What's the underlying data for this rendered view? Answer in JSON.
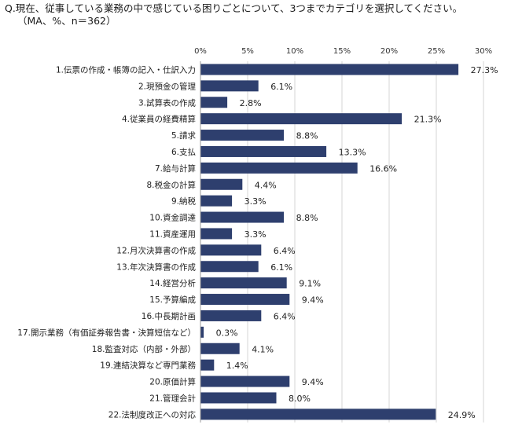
{
  "question": "Q.現在、従事している業務の中で感じている困りごとについて、3つまでカテゴリを選択してください。",
  "note": "（MA、%、n＝362）",
  "chart_data": {
    "type": "bar",
    "orientation": "horizontal",
    "title": "Q.現在、従事している業務の中で感じている困りごとについて、3つまでカテゴリを選択してください。",
    "subtitle": "（MA、%、n＝362）",
    "xlim": [
      0,
      30
    ],
    "xticks": [
      "0%",
      "5%",
      "10%",
      "15%",
      "20%",
      "25%",
      "30%"
    ],
    "xtick_values": [
      0,
      5,
      10,
      15,
      20,
      25,
      30
    ],
    "grid": true,
    "bar_color": "#2e3f6e",
    "categories": [
      "1.伝票の作成・帳簿の記入・仕訳入力",
      "2.現預金の管理",
      "3.試算表の作成",
      "4.従業員の経費精算",
      "5.請求",
      "6.支払",
      "7.給与計算",
      "8.税金の計算",
      "9.納税",
      "10.資金調達",
      "11.資産運用",
      "12.月次決算書の作成",
      "13.年次決算書の作成",
      "14.経営分析",
      "15.予算編成",
      "16.中長期計画",
      "17.開示業務（有価証券報告書・決算短信など）",
      "18.監査対応（内部・外部）",
      "19.連結決算など専門業務",
      "20.原価計算",
      "21.管理会計",
      "22.法制度改正への対応"
    ],
    "values": [
      27.3,
      6.1,
      2.8,
      21.3,
      8.8,
      13.3,
      16.6,
      4.4,
      3.3,
      8.8,
      3.3,
      6.4,
      6.1,
      9.1,
      9.4,
      6.4,
      0.3,
      4.1,
      1.4,
      9.4,
      8.0,
      24.9
    ],
    "value_labels": [
      "27.3%",
      "6.1%",
      "2.8%",
      "21.3%",
      "8.8%",
      "13.3%",
      "16.6%",
      "4.4%",
      "3.3%",
      "8.8%",
      "3.3%",
      "6.4%",
      "6.1%",
      "9.1%",
      "9.4%",
      "6.4%",
      "0.3%",
      "4.1%",
      "1.4%",
      "9.4%",
      "8.0%",
      "24.9%"
    ]
  }
}
